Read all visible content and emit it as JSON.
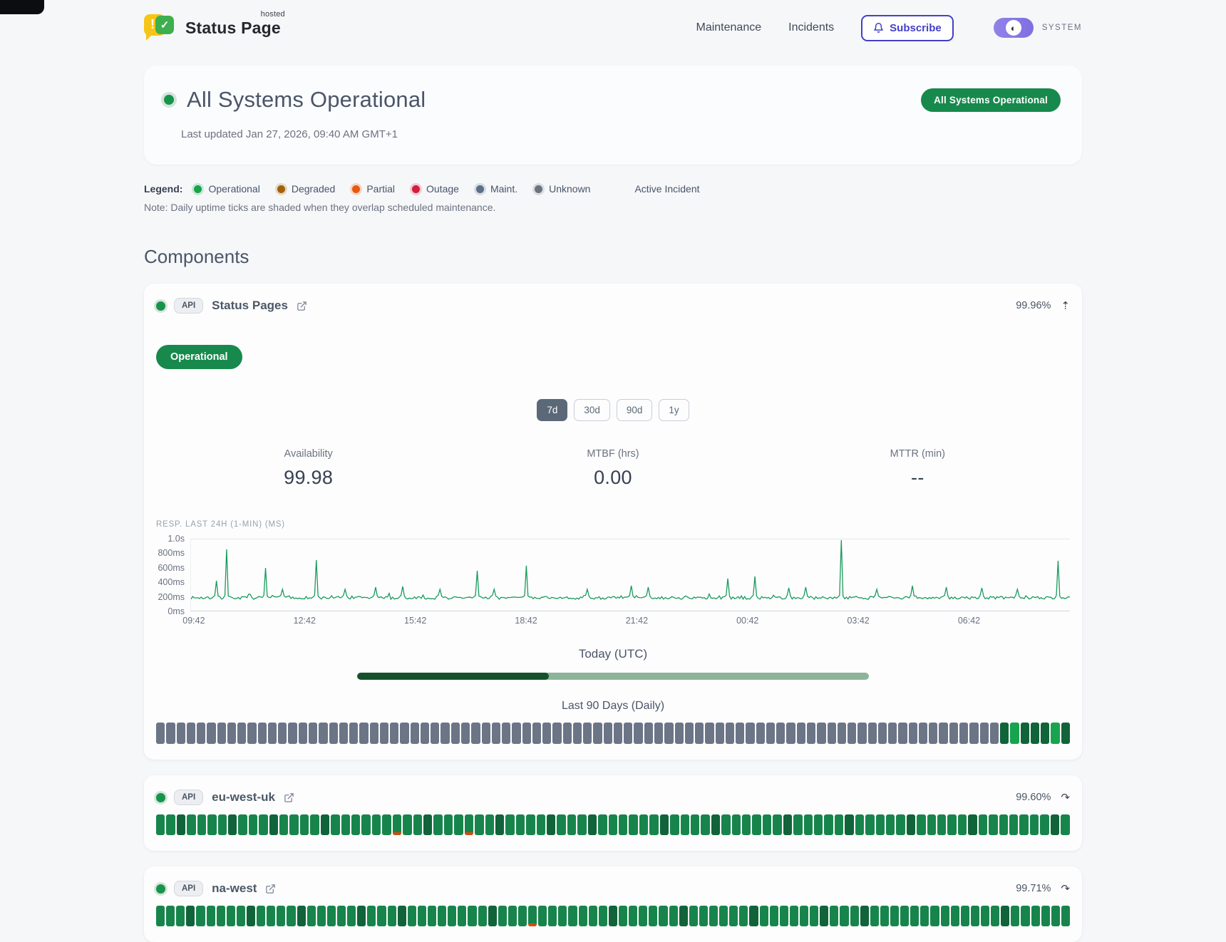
{
  "header": {
    "brand": {
      "name": "Status Page",
      "superscript": "hosted"
    },
    "nav": [
      {
        "label": "Maintenance"
      },
      {
        "label": "Incidents"
      }
    ],
    "subscribe_label": "Subscribe",
    "theme_label": "SYSTEM"
  },
  "hero": {
    "title": "All Systems Operational",
    "last_updated": "Last updated Jan 27, 2026, 09:40 AM GMT+1",
    "badge": "All Systems Operational"
  },
  "legend": {
    "label": "Legend:",
    "items": [
      {
        "label": "Operational",
        "color": "#16a34a"
      },
      {
        "label": "Degraded",
        "color": "#a16207"
      },
      {
        "label": "Partial",
        "color": "#ea580c"
      },
      {
        "label": "Outage",
        "color": "#d41c3c"
      },
      {
        "label": "Maint.",
        "color": "#5a7086"
      },
      {
        "label": "Unknown",
        "color": "#6b7280"
      }
    ],
    "active_incident_label": "Active Incident",
    "note": "Note: Daily uptime ticks are shaded when they overlap scheduled maintenance."
  },
  "components": {
    "heading": "Components",
    "expanded": {
      "tag": "API",
      "name": "Status Pages",
      "uptime": "99.96%",
      "collapse_icon": "⇡",
      "status_badge": "Operational",
      "ranges": [
        "7d",
        "30d",
        "90d",
        "1y"
      ],
      "active_range": "7d",
      "stats": [
        {
          "label": "Availability",
          "value": "99.98"
        },
        {
          "label": "MTBF (hrs)",
          "value": "0.00"
        },
        {
          "label": "MTTR (min)",
          "value": "--"
        }
      ],
      "today_label": "Today (UTC)",
      "today_percent": 37.5,
      "history_label": "Last 90 Days (Daily)",
      "history_ticks": "xxxxxxxxxxxxxxxxxxxxxxxxxxxxxxxxxxxxxxxxxxxxxxxxxxxxxxxxxxxxxxxxxxxxxxxxxxxxxxxxxxxdbdddbd"
    },
    "collapsed": [
      {
        "tag": "API",
        "name": "eu-west-uk",
        "uptime": "99.60%",
        "expand_icon": "↷",
        "ticks": "ggdggggdgggdggggdggggggpggdgggpggdggggdgggdggggggdggggdggggggdgggggdgggggdgggggdgggggggdg"
      },
      {
        "tag": "API",
        "name": "na-west",
        "uptime": "99.71%",
        "expand_icon": "↷",
        "ticks": "gggdgggggdggggdgggggdgggdggggggggdgggpgggggggdggggggdggggggdggggggdgggdgggggggggggggdgggggg"
      }
    ],
    "tick_palette": {
      "g": "#17854b",
      "d": "#11633a",
      "b": "#18a44f",
      "x": "#6b7586",
      "p": "#17854b",
      "sliver": "#cf4e12"
    }
  },
  "chart_data": {
    "type": "line",
    "title": "RESP. LAST 24H (1-MIN) (MS)",
    "x_ticks": [
      "09:42",
      "12:42",
      "15:42",
      "18:42",
      "21:42",
      "00:42",
      "03:42",
      "06:42"
    ],
    "x_tick_spacing_frac": 0.1259,
    "y_ticks": [
      "1.0s",
      "800ms",
      "600ms",
      "400ms",
      "200ms",
      "0ms"
    ],
    "ylim": [
      0,
      1000
    ],
    "grid": false,
    "line_color": "#1a9a5c",
    "baseline_ms": 175,
    "noise_ms": 40,
    "spikes": [
      {
        "x_frac": 0.028,
        "ms": 420
      },
      {
        "x_frac": 0.041,
        "ms": 860
      },
      {
        "x_frac": 0.085,
        "ms": 600
      },
      {
        "x_frac": 0.105,
        "ms": 300
      },
      {
        "x_frac": 0.142,
        "ms": 710
      },
      {
        "x_frac": 0.175,
        "ms": 300
      },
      {
        "x_frac": 0.21,
        "ms": 330
      },
      {
        "x_frac": 0.24,
        "ms": 340
      },
      {
        "x_frac": 0.283,
        "ms": 300
      },
      {
        "x_frac": 0.326,
        "ms": 560
      },
      {
        "x_frac": 0.345,
        "ms": 300
      },
      {
        "x_frac": 0.381,
        "ms": 630
      },
      {
        "x_frac": 0.45,
        "ms": 300
      },
      {
        "x_frac": 0.5,
        "ms": 350
      },
      {
        "x_frac": 0.52,
        "ms": 330
      },
      {
        "x_frac": 0.61,
        "ms": 450
      },
      {
        "x_frac": 0.641,
        "ms": 480
      },
      {
        "x_frac": 0.68,
        "ms": 320
      },
      {
        "x_frac": 0.7,
        "ms": 330
      },
      {
        "x_frac": 0.739,
        "ms": 990
      },
      {
        "x_frac": 0.78,
        "ms": 300
      },
      {
        "x_frac": 0.82,
        "ms": 350
      },
      {
        "x_frac": 0.86,
        "ms": 330
      },
      {
        "x_frac": 0.9,
        "ms": 320
      },
      {
        "x_frac": 0.94,
        "ms": 300
      },
      {
        "x_frac": 0.986,
        "ms": 700
      }
    ]
  }
}
